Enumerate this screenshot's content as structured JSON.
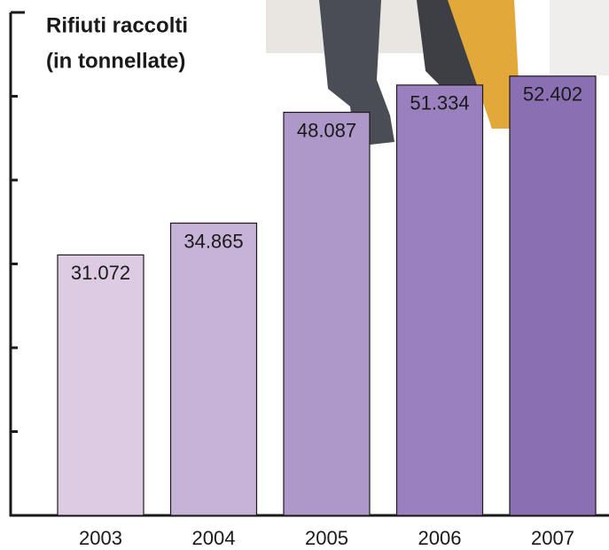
{
  "chart_data": {
    "type": "bar",
    "title": [
      "Rifiuti raccolti",
      "(in tonnellate)"
    ],
    "categories": [
      "2003",
      "2004",
      "2005",
      "2006",
      "2007"
    ],
    "values": [
      31072,
      34865,
      48087,
      51334,
      52402
    ],
    "value_labels": [
      "31.072",
      "34.865",
      "48.087",
      "51.334",
      "52.402"
    ],
    "colors": [
      "#dccbe2",
      "#c7b2d8",
      "#ae97c9",
      "#9b80bf",
      "#8a70b2"
    ],
    "ylim": [
      0,
      60000
    ],
    "yticks": [
      0,
      10000,
      20000,
      30000,
      40000,
      50000,
      60000
    ]
  }
}
